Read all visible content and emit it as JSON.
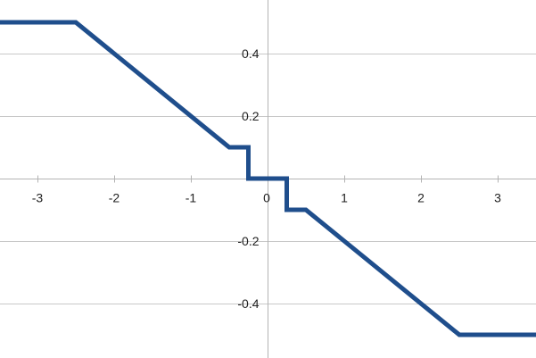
{
  "chart_data": {
    "type": "line",
    "title": "",
    "xlabel": "",
    "ylabel": "",
    "xlim": [
      -3.5,
      3.5
    ],
    "ylim": [
      -0.55,
      0.55
    ],
    "grid": true,
    "legend": "none",
    "x_ticks": [
      {
        "value": -3,
        "label": "-3"
      },
      {
        "value": -2,
        "label": "-2"
      },
      {
        "value": -1,
        "label": "-1"
      },
      {
        "value": 0,
        "label": "0"
      },
      {
        "value": 1,
        "label": "1"
      },
      {
        "value": 2,
        "label": "2"
      },
      {
        "value": 3,
        "label": "3"
      }
    ],
    "y_ticks": [
      {
        "value": 0.4,
        "label": "0.4"
      },
      {
        "value": 0.2,
        "label": "0.2"
      },
      {
        "value": 0,
        "label": "0"
      },
      {
        "value": -0.2,
        "label": "-0.2"
      },
      {
        "value": -0.4,
        "label": "-0.4"
      }
    ],
    "series": [
      {
        "color": "#1f4e8c",
        "x": [
          -3.5,
          -2.5,
          -0.5,
          -0.25,
          -0.25,
          0.25,
          0.25,
          0.5,
          2.5,
          3.5
        ],
        "y": [
          0.5,
          0.5,
          0.1,
          0.1,
          0.0,
          0.0,
          -0.1,
          -0.1,
          -0.5,
          -0.5
        ]
      }
    ]
  }
}
